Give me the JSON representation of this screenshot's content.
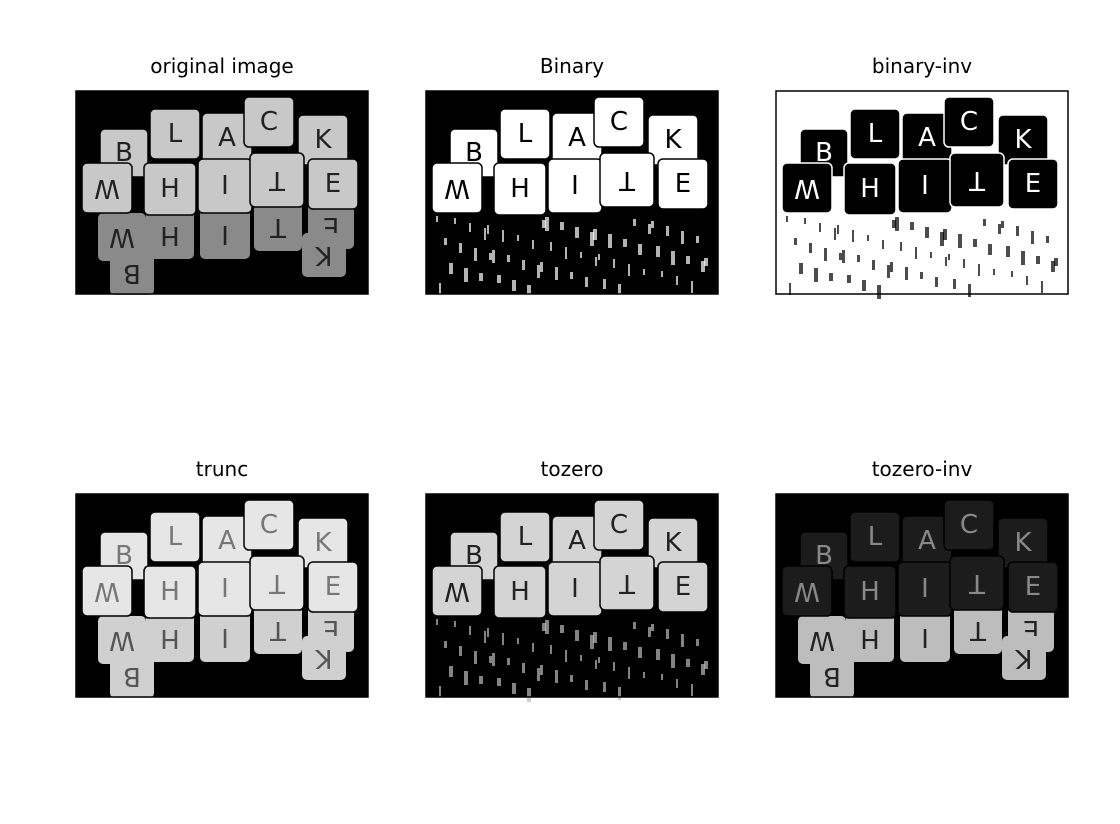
{
  "panels": [
    {
      "title": "original image"
    },
    {
      "title": "Binary"
    },
    {
      "title": "binary-inv"
    },
    {
      "title": "trunc"
    },
    {
      "title": "tozero"
    },
    {
      "title": "tozero-inv"
    }
  ],
  "dice_letters": [
    "B",
    "L",
    "A",
    "C",
    "K",
    "W",
    "H",
    "I",
    "T",
    "E"
  ]
}
